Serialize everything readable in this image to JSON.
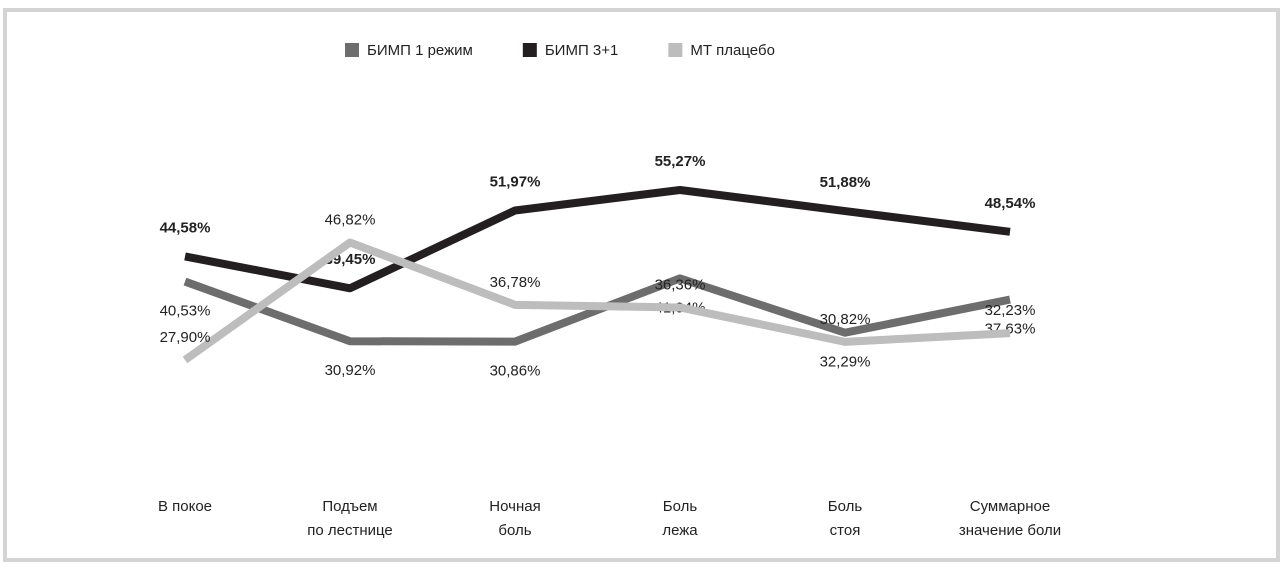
{
  "chart_data": {
    "type": "line",
    "categories": [
      [
        "В покое"
      ],
      [
        "Подъем",
        "по лестнице"
      ],
      [
        "Ночная",
        "боль"
      ],
      [
        "Боль",
        "лежа"
      ],
      [
        "Боль",
        "стоя"
      ],
      [
        "Суммарное",
        "значение боли"
      ]
    ],
    "series": [
      {
        "name": "БИМП 1 режим",
        "color": "#6d6d6d",
        "values": [
          40.53,
          30.92,
          30.86,
          41.04,
          32.29,
          37.63
        ],
        "value_labels": [
          "40,53%",
          "30,92%",
          "30,86%",
          "41,04%",
          "32,29%",
          "37,63%"
        ]
      },
      {
        "name": "БИМП 3+1",
        "color": "#231f20",
        "values": [
          44.58,
          39.45,
          51.97,
          55.27,
          51.88,
          48.54
        ],
        "value_labels": [
          "44,58%",
          "39,45%",
          "51,97%",
          "55,27%",
          "51,88%",
          "48,54%"
        ]
      },
      {
        "name": "МТ плацебо",
        "color": "#bdbdbd",
        "values": [
          27.9,
          46.82,
          36.78,
          36.36,
          30.82,
          32.23
        ],
        "value_labels": [
          "27,90%",
          "46,82%",
          "36,78%",
          "36,36%",
          "30,82%",
          "32,23%"
        ]
      }
    ],
    "legend": "top"
  }
}
